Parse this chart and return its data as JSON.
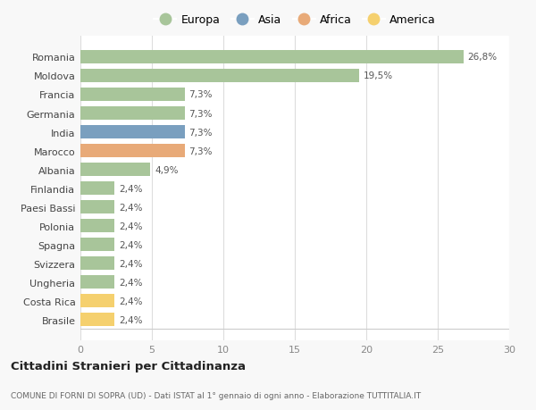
{
  "countries": [
    "Brasile",
    "Costa Rica",
    "Ungheria",
    "Svizzera",
    "Spagna",
    "Polonia",
    "Paesi Bassi",
    "Finlandia",
    "Albania",
    "Marocco",
    "India",
    "Germania",
    "Francia",
    "Moldova",
    "Romania"
  ],
  "values": [
    2.4,
    2.4,
    2.4,
    2.4,
    2.4,
    2.4,
    2.4,
    2.4,
    4.9,
    7.3,
    7.3,
    7.3,
    7.3,
    19.5,
    26.8
  ],
  "labels": [
    "2,4%",
    "2,4%",
    "2,4%",
    "2,4%",
    "2,4%",
    "2,4%",
    "2,4%",
    "2,4%",
    "4,9%",
    "7,3%",
    "7,3%",
    "7,3%",
    "7,3%",
    "19,5%",
    "26,8%"
  ],
  "colors": [
    "#f5d06e",
    "#f5d06e",
    "#a8c59a",
    "#a8c59a",
    "#a8c59a",
    "#a8c59a",
    "#a8c59a",
    "#a8c59a",
    "#a8c59a",
    "#e8aa78",
    "#7a9fbf",
    "#a8c59a",
    "#a8c59a",
    "#a8c59a",
    "#a8c59a"
  ],
  "legend_labels": [
    "Europa",
    "Asia",
    "Africa",
    "America"
  ],
  "legend_colors": [
    "#a8c59a",
    "#7a9fbf",
    "#e8aa78",
    "#f5d06e"
  ],
  "xlim": [
    0,
    30
  ],
  "xticks": [
    0,
    5,
    10,
    15,
    20,
    25,
    30
  ],
  "title": "Cittadini Stranieri per Cittadinanza",
  "subtitle": "COMUNE DI FORNI DI SOPRA (UD) - Dati ISTAT al 1° gennaio di ogni anno - Elaborazione TUTTITALIA.IT",
  "bg_color": "#f8f8f8",
  "bar_bg": "#ffffff",
  "grid_color": "#dddddd"
}
